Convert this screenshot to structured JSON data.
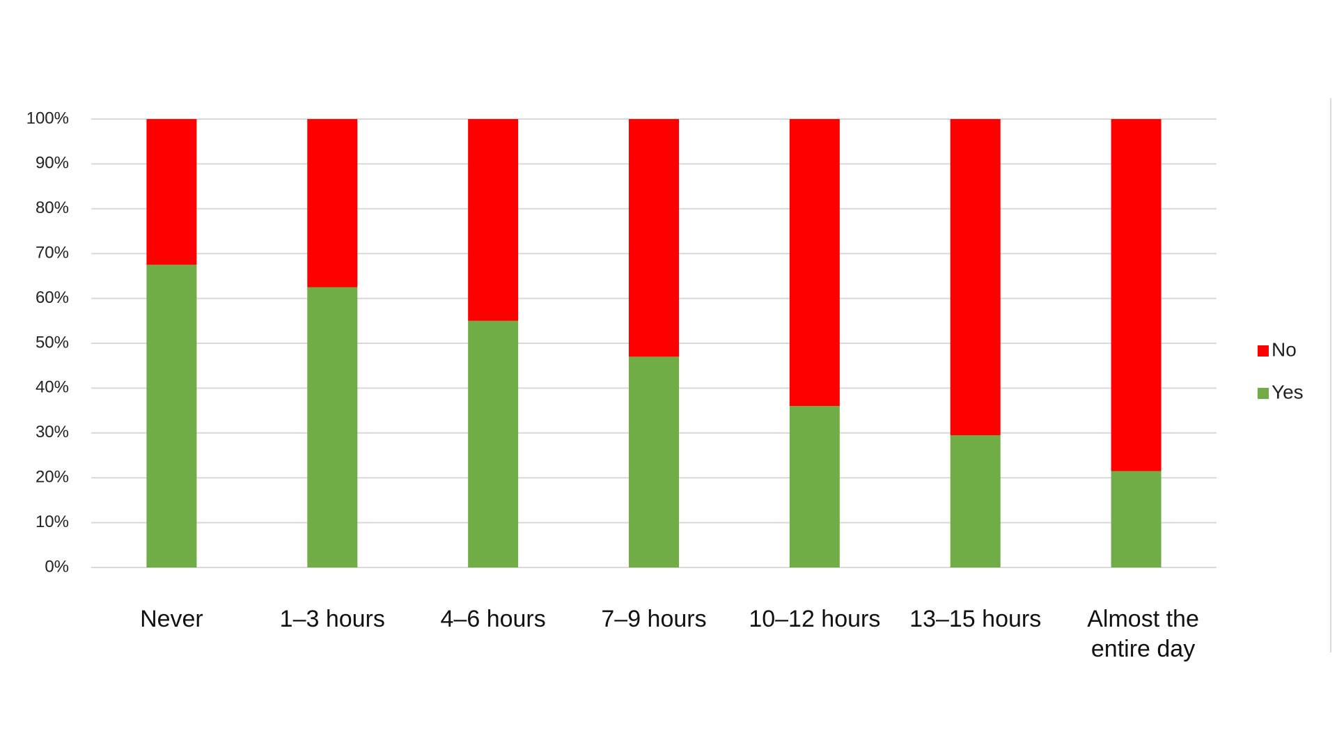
{
  "chart_data": {
    "type": "stacked_bar",
    "categories": [
      "Never",
      "1–3 hours",
      "4–6 hours",
      "7–9 hours",
      "10–12 hours",
      "13–15 hours",
      "Almost the entire day"
    ],
    "series": [
      {
        "name": "Yes",
        "color": "#70ad47",
        "values": [
          67.5,
          62.5,
          55,
          47,
          36,
          29.5,
          21.5
        ]
      },
      {
        "name": "No",
        "color": "#ff0000",
        "values": [
          32.5,
          37.5,
          45,
          53,
          64,
          70.5,
          78.5
        ]
      }
    ],
    "ylim": [
      0,
      100
    ],
    "yticks": [
      {
        "value": 0,
        "label": "0%"
      },
      {
        "value": 10,
        "label": "10%"
      },
      {
        "value": 20,
        "label": "20%"
      },
      {
        "value": 30,
        "label": "30%"
      },
      {
        "value": 40,
        "label": "40%"
      },
      {
        "value": 50,
        "label": "50%"
      },
      {
        "value": 60,
        "label": "60%"
      },
      {
        "value": 70,
        "label": "70%"
      },
      {
        "value": 80,
        "label": "80%"
      },
      {
        "value": 90,
        "label": "90%"
      },
      {
        "value": 100,
        "label": "100%"
      }
    ],
    "grid": true,
    "legend": "right"
  }
}
